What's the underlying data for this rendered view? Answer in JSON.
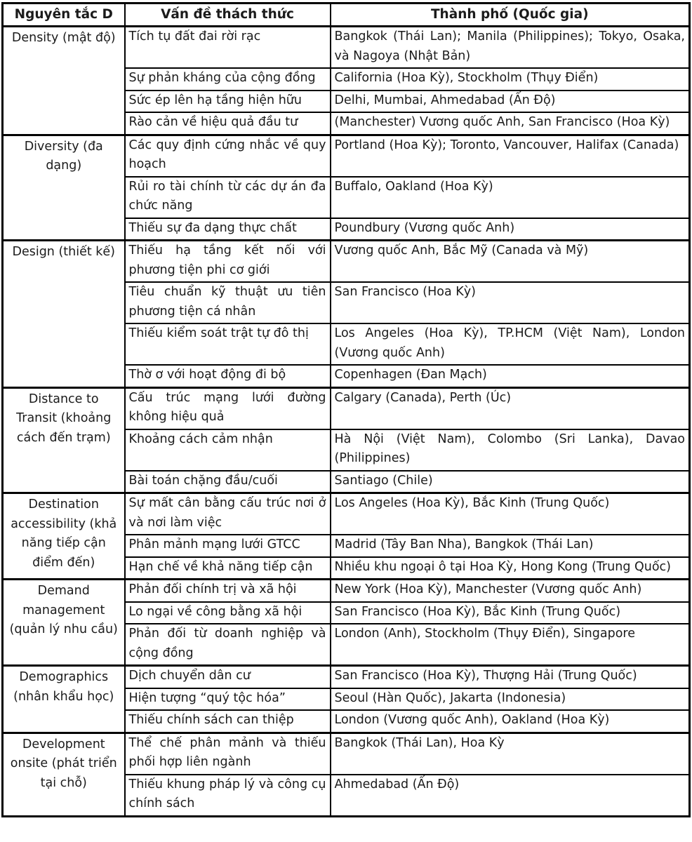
{
  "table": {
    "headers": [
      "Nguyên tắc D",
      "Vấn đề thách thức",
      "Thành phố (Quốc gia)"
    ],
    "sections": [
      {
        "principle": "Density (mật độ)",
        "rows": [
          {
            "challenge": "Tích tụ đất đai rời rạc",
            "cities": "Bangkok (Thái Lan); Manila (Philippines); Tokyo, Osaka, và Nagoya (Nhật Bản)"
          },
          {
            "challenge": "Sự phản kháng của cộng đồng",
            "cities": "California (Hoa Kỳ), Stockholm (Thụy Điển)"
          },
          {
            "challenge": "Sức ép lên hạ tầng hiện hữu",
            "cities": "Delhi, Mumbai, Ahmedabad (Ấn Độ)"
          },
          {
            "challenge": "Rào cản về hiệu quả đầu tư",
            "cities": "(Manchester) Vương quốc Anh, San Francisco (Hoa Kỳ)"
          }
        ]
      },
      {
        "principle": "Diversity (đa dạng)",
        "rows": [
          {
            "challenge": "Các quy định cứng nhắc về quy hoạch",
            "cities": "Portland (Hoa Kỳ); Toronto, Vancouver, Halifax (Canada)"
          },
          {
            "challenge": "Rủi ro tài chính từ các dự án đa chức năng",
            "cities": "Buffalo, Oakland (Hoa Kỳ)"
          },
          {
            "challenge": "Thiếu sự đa dạng thực chất",
            "cities": "Poundbury (Vương quốc Anh)"
          }
        ]
      },
      {
        "principle": "Design (thiết kế)",
        "rows": [
          {
            "challenge": "Thiếu hạ tầng kết nối với phương tiện phi cơ giới",
            "cities": "Vương quốc Anh, Bắc Mỹ (Canada và Mỹ)"
          },
          {
            "challenge": "Tiêu chuẩn kỹ thuật ưu tiên phương tiện cá nhân",
            "cities": "San Francisco (Hoa Kỳ)"
          },
          {
            "challenge": "Thiếu kiểm soát trật tự đô thị",
            "cities": "Los Angeles (Hoa Kỳ), TP.HCM (Việt Nam), London (Vương quốc Anh)"
          },
          {
            "challenge": "Thờ ơ với hoạt động đi bộ",
            "cities": "Copenhagen (Đan Mạch)"
          }
        ]
      },
      {
        "principle": "Distance to Transit (khoảng cách đến trạm)",
        "rows": [
          {
            "challenge": "Cấu trúc mạng lưới đường không hiệu quả",
            "cities": "Calgary (Canada), Perth (Úc)"
          },
          {
            "challenge": "Khoảng cách cảm nhận",
            "cities": "Hà Nội (Việt Nam), Colombo (Sri Lanka), Davao (Philippines)"
          },
          {
            "challenge": "Bài toán chặng đầu/cuối",
            "cities": "Santiago (Chile)"
          }
        ]
      },
      {
        "principle": "Destination accessibility (khả năng tiếp cận điểm đến)",
        "rows": [
          {
            "challenge": "Sự mất cân bằng cấu trúc nơi ở và nơi làm việc",
            "cities": "Los Angeles (Hoa Kỳ), Bắc Kinh (Trung Quốc)"
          },
          {
            "challenge": "Phân mảnh mạng lưới GTCC",
            "cities": "Madrid (Tây Ban Nha), Bangkok (Thái Lan)"
          },
          {
            "challenge": "Hạn chế về khả năng tiếp cận",
            "cities": "Nhiều khu ngoại ô tại Hoa Kỳ, Hong Kong (Trung Quốc)"
          }
        ]
      },
      {
        "principle": "Demand management (quản lý nhu cầu)",
        "rows": [
          {
            "challenge": "Phản đối chính trị và xã hội",
            "cities": "New York (Hoa Kỳ), Manchester (Vương quốc Anh)"
          },
          {
            "challenge": "Lo ngại về công bằng xã hội",
            "cities": "San Francisco (Hoa Kỳ), Bắc Kinh (Trung Quốc)"
          },
          {
            "challenge": "Phản đối từ doanh nghiệp và cộng đồng",
            "cities": "London (Anh), Stockholm (Thụy Điển), Singapore"
          }
        ]
      },
      {
        "principle": "Demographics (nhân khẩu học)",
        "rows": [
          {
            "challenge": "Dịch chuyển dân cư",
            "cities": "San Francisco (Hoa Kỳ), Thượng Hải (Trung Quốc)"
          },
          {
            "challenge": "Hiện tượng “quý tộc hóa”",
            "cities": "Seoul (Hàn Quốc), Jakarta (Indonesia)"
          },
          {
            "challenge": "Thiếu chính sách can thiệp",
            "cities": "London (Vương quốc Anh), Oakland (Hoa Kỳ)"
          }
        ]
      },
      {
        "principle": "Development onsite (phát triển tại chỗ)",
        "rows": [
          {
            "challenge": "Thể chế phân mảnh và thiếu phối hợp liên ngành",
            "cities": "Bangkok (Thái Lan), Hoa Kỳ"
          },
          {
            "challenge": "Thiếu khung pháp lý và công cụ chính sách",
            "cities": "Ahmedabad (Ấn Độ)"
          }
        ]
      }
    ]
  }
}
